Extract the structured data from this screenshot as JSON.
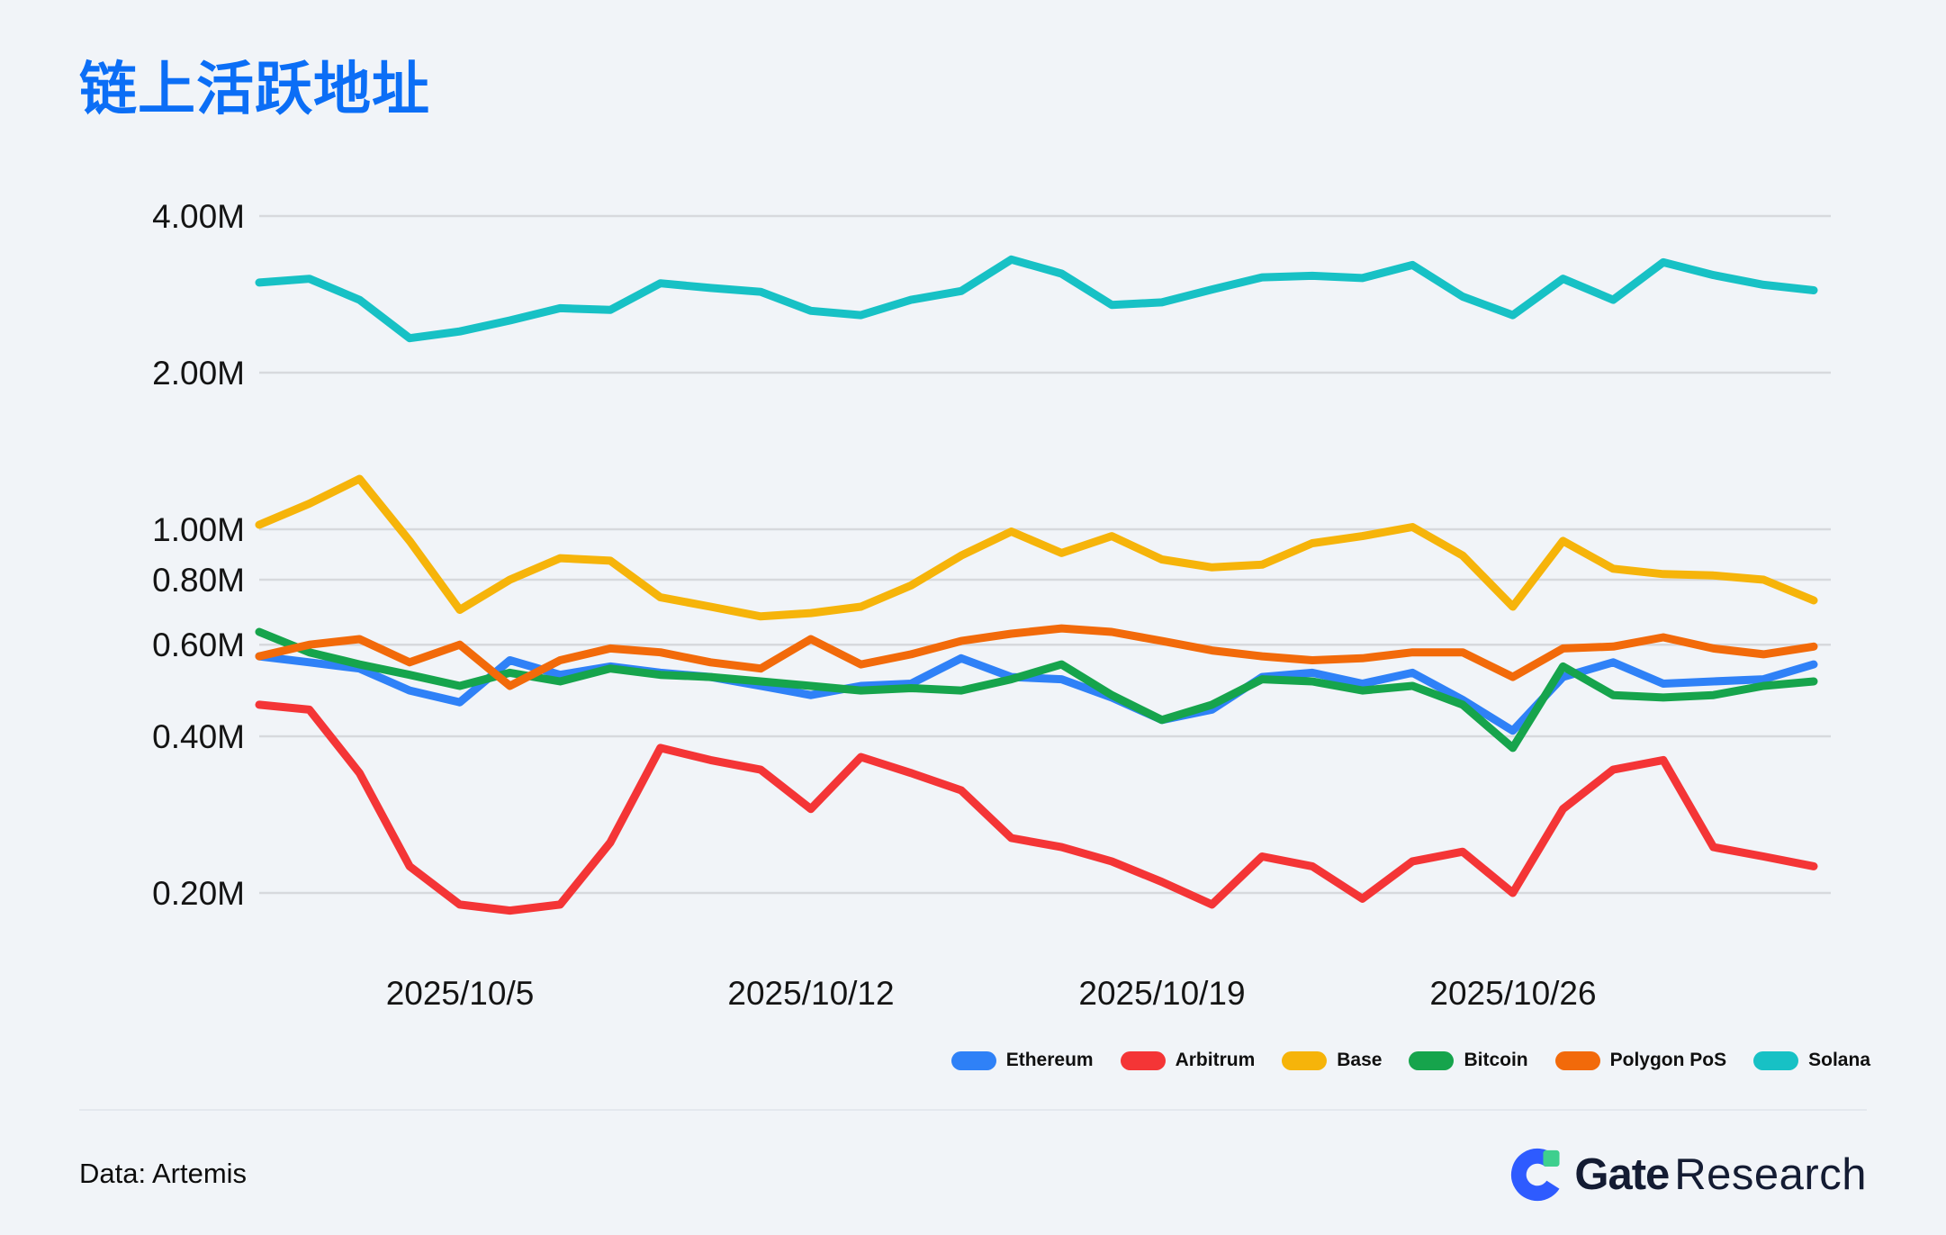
{
  "page": {
    "title": "链上活跃地址",
    "source_note": "Data: Artemis",
    "brand": {
      "name_bold": "Gate",
      "name_light": "Research"
    }
  },
  "colors": {
    "background": "#f1f4f8",
    "title_blue": "#0b6ef6",
    "gridline": "#d7d9dd",
    "axis_text": "#141414",
    "divider": "#e4e8ee",
    "brand_navy": "#141c33",
    "brand_icon_blue": "#2e5bff",
    "brand_icon_green": "#3ecf8e"
  },
  "chart_data": {
    "type": "line",
    "title": "链上活跃地址",
    "xlabel": "",
    "ylabel": "",
    "y_scale": "log",
    "ylim_M": [
      0.15,
      4.6
    ],
    "grid": true,
    "legend_position": "bottom-right",
    "unit": "M active addresses",
    "y_ticks_M": [
      4,
      2,
      1,
      0.8,
      0.6,
      0.4,
      0.2
    ],
    "y_tick_labels": [
      "4.00M",
      "2.00M",
      "1.00M",
      "0.80M",
      "0.60M",
      "0.40M",
      "0.20M"
    ],
    "x": [
      "2025/10/1",
      "2025/10/2",
      "2025/10/3",
      "2025/10/4",
      "2025/10/5",
      "2025/10/6",
      "2025/10/7",
      "2025/10/8",
      "2025/10/9",
      "2025/10/10",
      "2025/10/11",
      "2025/10/12",
      "2025/10/13",
      "2025/10/14",
      "2025/10/15",
      "2025/10/16",
      "2025/10/17",
      "2025/10/18",
      "2025/10/19",
      "2025/10/20",
      "2025/10/21",
      "2025/10/22",
      "2025/10/23",
      "2025/10/24",
      "2025/10/25",
      "2025/10/26",
      "2025/10/27",
      "2025/10/28",
      "2025/10/29",
      "2025/10/30",
      "2025/10/31",
      "2025/11/1"
    ],
    "x_ticks": [
      {
        "index": 4,
        "label": "2025/10/5"
      },
      {
        "index": 11,
        "label": "2025/10/12"
      },
      {
        "index": 18,
        "label": "2025/10/19"
      },
      {
        "index": 25,
        "label": "2025/10/26"
      }
    ],
    "series": [
      {
        "name": "Ethereum",
        "color": "#2f81f7",
        "values_M": [
          0.57,
          0.555,
          0.54,
          0.49,
          0.465,
          0.56,
          0.525,
          0.545,
          0.53,
          0.52,
          0.5,
          0.48,
          0.5,
          0.505,
          0.565,
          0.52,
          0.515,
          0.475,
          0.43,
          0.45,
          0.52,
          0.53,
          0.505,
          0.53,
          0.47,
          0.41,
          0.52,
          0.555,
          0.505,
          0.51,
          0.515,
          0.55
        ]
      },
      {
        "name": "Arbitrum",
        "color": "#f43536",
        "values_M": [
          0.46,
          0.45,
          0.34,
          0.225,
          0.19,
          0.185,
          0.19,
          0.25,
          0.38,
          0.36,
          0.345,
          0.29,
          0.365,
          0.34,
          0.315,
          0.255,
          0.245,
          0.23,
          0.21,
          0.19,
          0.235,
          0.225,
          0.195,
          0.23,
          0.24,
          0.2,
          0.29,
          0.345,
          0.36,
          0.245,
          0.235,
          0.225
        ]
      },
      {
        "name": "Base",
        "color": "#f6b40a",
        "values_M": [
          1.02,
          1.12,
          1.25,
          0.95,
          0.7,
          0.8,
          0.88,
          0.87,
          0.74,
          0.71,
          0.68,
          0.69,
          0.71,
          0.78,
          0.89,
          0.99,
          0.9,
          0.97,
          0.875,
          0.845,
          0.855,
          0.94,
          0.97,
          1.01,
          0.89,
          0.71,
          0.95,
          0.84,
          0.82,
          0.815,
          0.8,
          0.73
        ]
      },
      {
        "name": "Bitcoin",
        "color": "#16a44c",
        "values_M": [
          0.635,
          0.58,
          0.55,
          0.525,
          0.5,
          0.53,
          0.51,
          0.54,
          0.525,
          0.52,
          0.51,
          0.5,
          0.49,
          0.495,
          0.49,
          0.515,
          0.55,
          0.48,
          0.43,
          0.46,
          0.515,
          0.51,
          0.49,
          0.5,
          0.46,
          0.38,
          0.545,
          0.48,
          0.475,
          0.48,
          0.5,
          0.51
        ]
      },
      {
        "name": "Polygon PoS",
        "color": "#f26a0a",
        "values_M": [
          0.57,
          0.6,
          0.615,
          0.555,
          0.6,
          0.5,
          0.56,
          0.59,
          0.58,
          0.555,
          0.54,
          0.615,
          0.55,
          0.575,
          0.61,
          0.63,
          0.645,
          0.635,
          0.61,
          0.585,
          0.57,
          0.56,
          0.565,
          0.58,
          0.58,
          0.52,
          0.59,
          0.595,
          0.62,
          0.59,
          0.575,
          0.595
        ]
      },
      {
        "name": "Solana",
        "color": "#17c1c5",
        "values_M": [
          2.98,
          3.03,
          2.76,
          2.33,
          2.4,
          2.52,
          2.66,
          2.64,
          2.97,
          2.91,
          2.86,
          2.63,
          2.58,
          2.76,
          2.87,
          3.3,
          3.1,
          2.7,
          2.73,
          2.89,
          3.05,
          3.07,
          3.04,
          3.22,
          2.8,
          2.58,
          3.03,
          2.76,
          3.26,
          3.08,
          2.95,
          2.88
        ]
      }
    ]
  }
}
